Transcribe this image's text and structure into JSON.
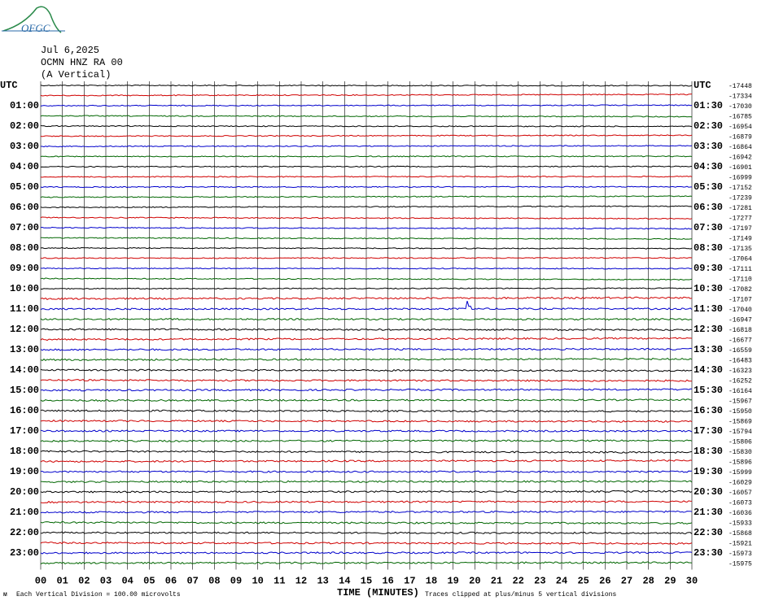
{
  "logo": "OFGC",
  "header": {
    "date": "Jul 6,2025",
    "station": "OCMN HNZ RA 00",
    "component": "(A Vertical)"
  },
  "left_labels": [
    "UTC",
    "01:00",
    "02:00",
    "03:00",
    "04:00",
    "05:00",
    "06:00",
    "07:00",
    "08:00",
    "09:00",
    "10:00",
    "11:00",
    "12:00",
    "13:00",
    "14:00",
    "15:00",
    "16:00",
    "17:00",
    "18:00",
    "19:00",
    "20:00",
    "21:00",
    "22:00",
    "23:00"
  ],
  "right_labels": [
    "UTC",
    "01:30",
    "02:30",
    "03:30",
    "04:30",
    "05:30",
    "06:30",
    "07:30",
    "08:30",
    "09:30",
    "10:30",
    "11:30",
    "12:30",
    "13:30",
    "14:30",
    "15:30",
    "16:30",
    "17:30",
    "18:30",
    "19:30",
    "20:30",
    "21:30",
    "22:30",
    "23:30"
  ],
  "right_values": [
    -17448,
    -17334,
    -17030,
    -16785,
    -16954,
    -16879,
    -16864,
    -16942,
    -16901,
    -16999,
    -17152,
    -17239,
    -17281,
    -17277,
    -17197,
    -17149,
    -17135,
    -17064,
    -17111,
    -17110,
    -17082,
    -17107,
    -17040,
    -16947,
    -16818,
    -16677,
    -16559,
    -16483,
    -16323,
    -16252,
    -16164,
    -15967,
    -15950,
    -15869,
    -15794,
    -15806,
    -15830,
    -15896,
    -15999,
    -16029,
    -16057,
    -16073,
    -16036,
    -15933,
    -15868,
    -15921,
    -15973,
    -15975
  ],
  "x_ticks": [
    "00",
    "01",
    "02",
    "03",
    "04",
    "05",
    "06",
    "07",
    "08",
    "09",
    "10",
    "11",
    "12",
    "13",
    "14",
    "15",
    "16",
    "17",
    "18",
    "19",
    "20",
    "21",
    "22",
    "23",
    "24",
    "25",
    "26",
    "27",
    "28",
    "29",
    "30"
  ],
  "footer": {
    "scale": "Each Vertical Division =  100.00 microvolts",
    "x_axis": "TIME (MINUTES)",
    "clip": "Traces clipped at plus/minus 5 vertical divisions"
  }
}
